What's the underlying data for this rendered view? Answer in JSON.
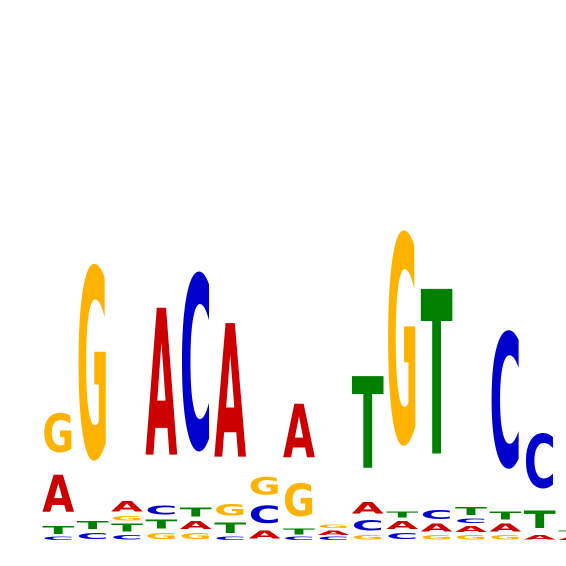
{
  "logo": {
    "colors": {
      "A": "#cc0000",
      "C": "#0000cc",
      "G": "#ffb300",
      "T": "#008000"
    },
    "positions": [
      [
        [
          "C",
          0.02
        ],
        [
          "T",
          0.05
        ],
        [
          "A",
          0.25
        ],
        [
          "G",
          0.26
        ]
      ],
      [
        [
          "C",
          0.04
        ],
        [
          "T",
          0.05
        ],
        [
          "G",
          1.28
        ]
      ],
      [
        [
          "C",
          0.03
        ],
        [
          "T",
          0.05
        ],
        [
          "G",
          0.03
        ],
        [
          "A",
          0.07
        ]
      ],
      [
        [
          "G",
          0.04
        ],
        [
          "T",
          0.06
        ],
        [
          "C",
          0.06
        ],
        [
          "A",
          0.99
        ]
      ],
      [
        [
          "G",
          0.04
        ],
        [
          "A",
          0.05
        ],
        [
          "T",
          0.06
        ],
        [
          "C",
          1.17
        ]
      ],
      [
        [
          "C",
          0.02
        ],
        [
          "T",
          0.07
        ],
        [
          "G",
          0.08
        ],
        [
          "A",
          0.9
        ]
      ],
      [
        [
          "A",
          0.05
        ],
        [
          "C",
          0.12
        ],
        [
          "G",
          0.12
        ]
      ],
      [
        [
          "C",
          0.02
        ],
        [
          "T",
          0.04
        ],
        [
          "G",
          0.22
        ],
        [
          "A",
          0.36
        ]
      ],
      [
        [
          "C",
          0.02
        ],
        [
          "A",
          0.03
        ],
        [
          "G",
          0.02
        ]
      ],
      [
        [
          "G",
          0.03
        ],
        [
          "C",
          0.07
        ],
        [
          "A",
          0.08
        ],
        [
          "T",
          0.62
        ]
      ],
      [
        [
          "C",
          0.04
        ],
        [
          "A",
          0.05
        ],
        [
          "T",
          0.04
        ],
        [
          "G",
          1.4
        ]
      ],
      [
        [
          "G",
          0.03
        ],
        [
          "A",
          0.05
        ],
        [
          "C",
          0.06
        ],
        [
          "T",
          1.11
        ]
      ],
      [
        [
          "G",
          0.03
        ],
        [
          "A",
          0.04
        ],
        [
          "C",
          0.03
        ],
        [
          "T",
          0.05
        ]
      ],
      [
        [
          "G",
          0.03
        ],
        [
          "A",
          0.05
        ],
        [
          "T",
          0.05
        ],
        [
          "C",
          0.9
        ]
      ],
      [
        [
          "A",
          0.03
        ],
        [
          "T",
          0.12
        ],
        [
          "C",
          0.36
        ]
      ],
      [
        [
          "A",
          0.02
        ],
        [
          "T",
          0.03
        ]
      ]
    ]
  }
}
